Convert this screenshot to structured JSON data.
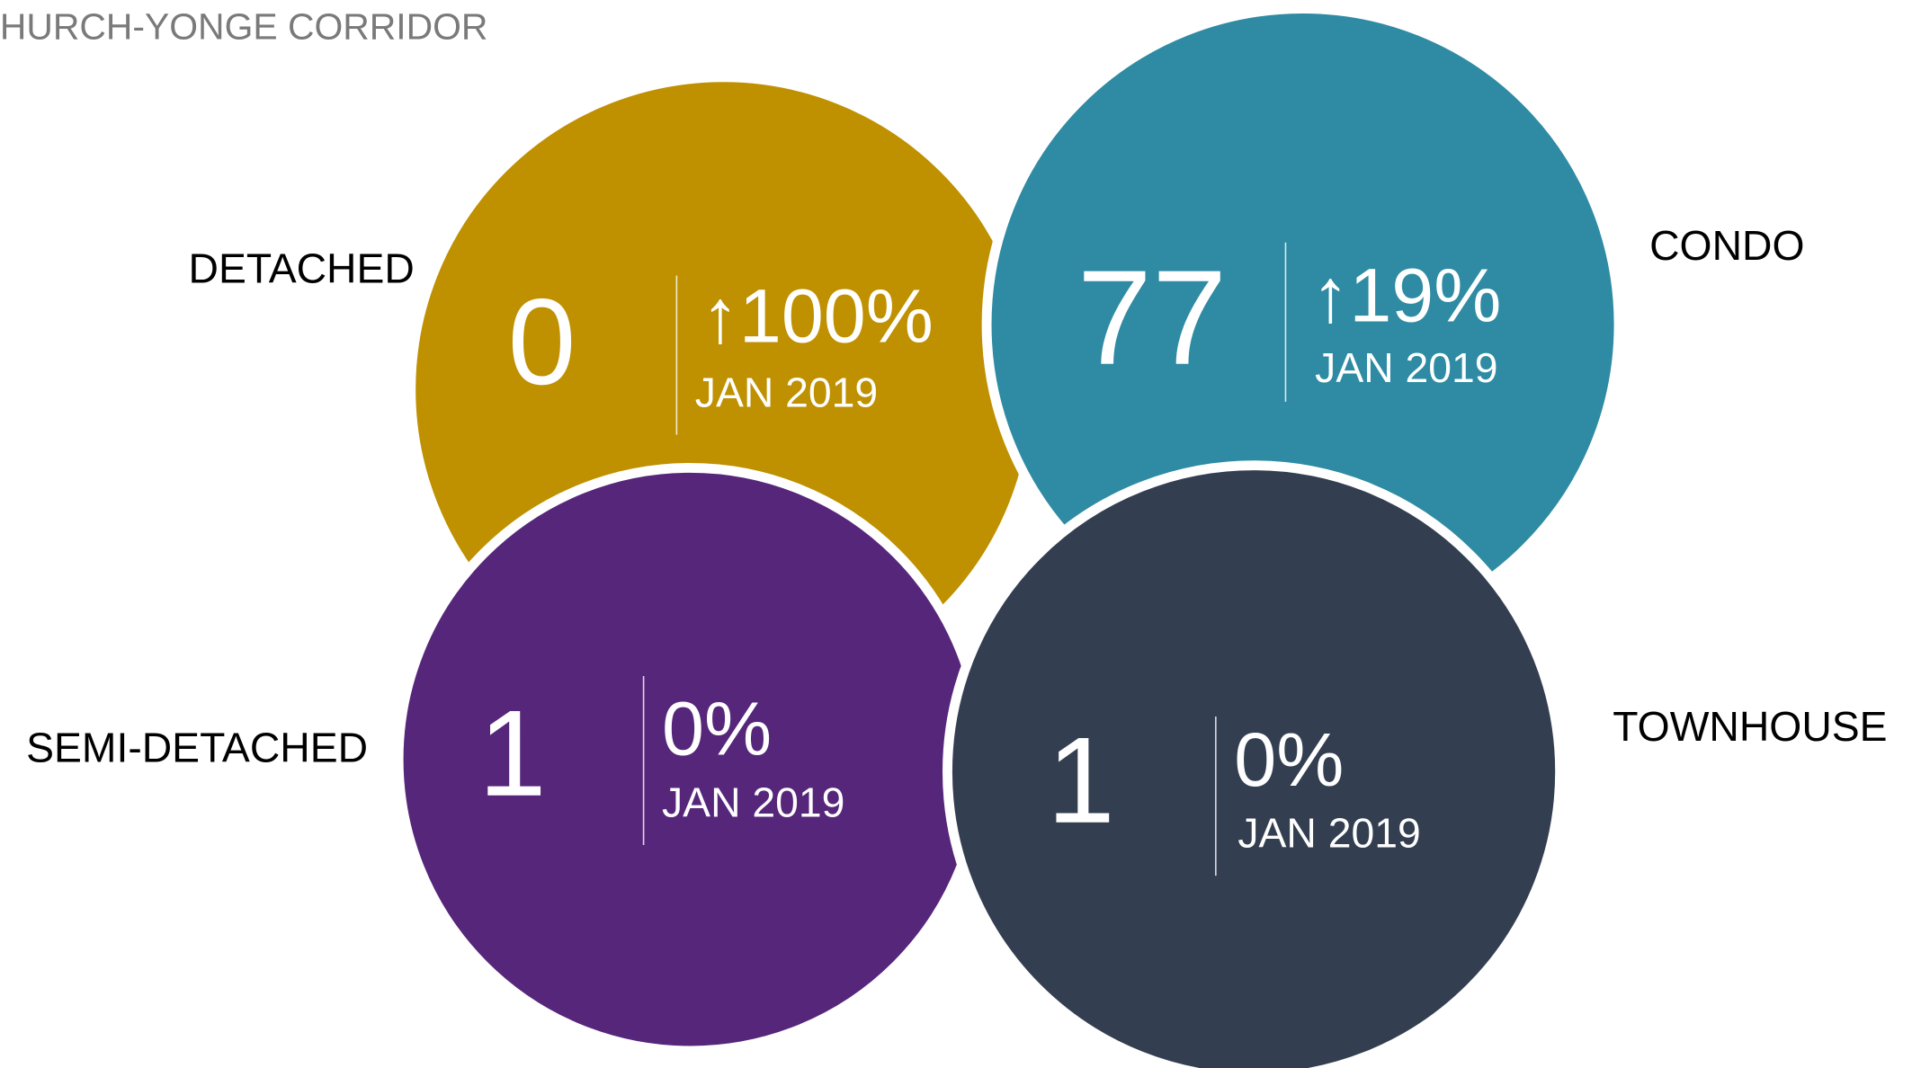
{
  "header": {
    "title": "CHURCH-YONGE CORRIDOR"
  },
  "segments": [
    {
      "label": "DETACHED",
      "value": "0",
      "change": "↑100%",
      "period": "JAN 2019",
      "color": "#bf9000"
    },
    {
      "label": "CONDO",
      "value": "77",
      "change": "↑19%",
      "period": "JAN 2019",
      "color": "#2e8ba3"
    },
    {
      "label": "SEMI-DETACHED",
      "value": "1",
      "change": "0%",
      "period": "JAN 2019",
      "color": "#56267a"
    },
    {
      "label": "TOWNHOUSE",
      "value": "1",
      "change": "0%",
      "period": "JAN 2019",
      "color": "#333f50"
    }
  ]
}
